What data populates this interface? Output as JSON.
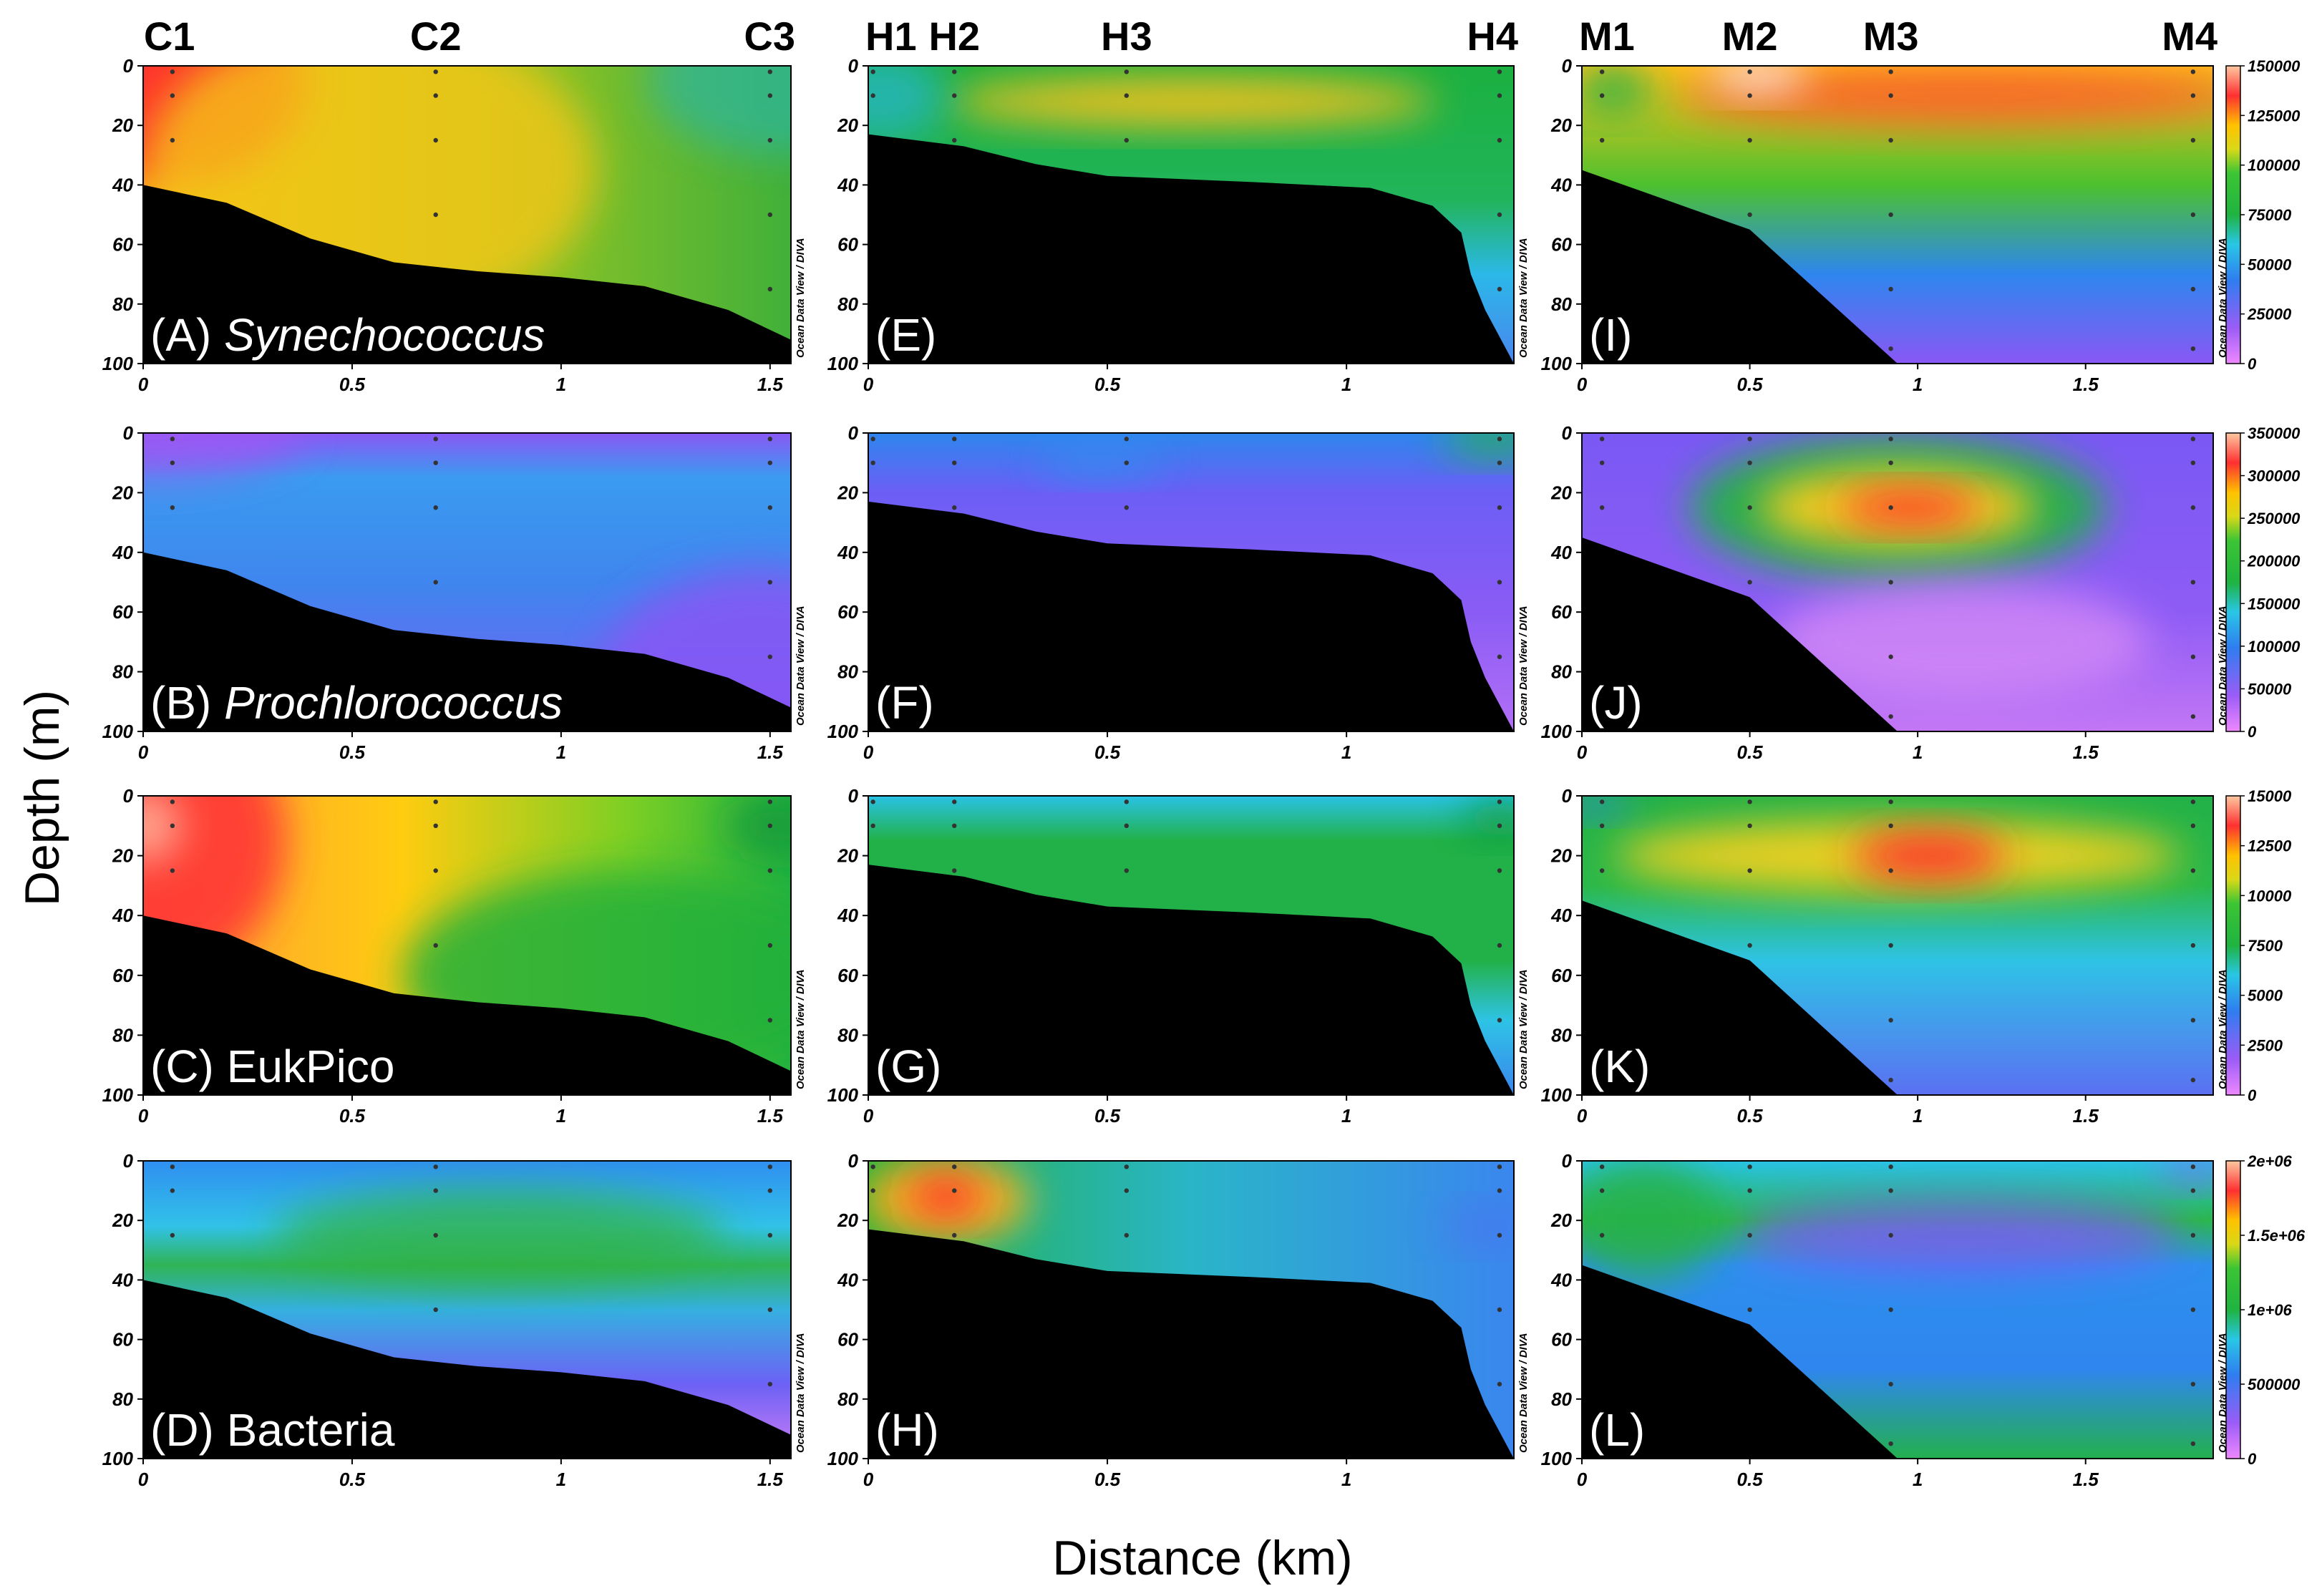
{
  "figure": {
    "ylabel": "Depth (m)",
    "xlabel": "Distance (km)",
    "watermark": "Ocean Data View / DIVA",
    "columns": [
      {
        "stations": [
          {
            "name": "C1",
            "km": 0.07
          },
          {
            "name": "C2",
            "km": 0.7
          },
          {
            "name": "C3",
            "km": 1.5
          }
        ]
      },
      {
        "stations": [
          {
            "name": "H1",
            "km": 0.01
          },
          {
            "name": "H2",
            "km": 0.18
          },
          {
            "name": "H3",
            "km": 0.54
          },
          {
            "name": "H4",
            "km": 1.32
          }
        ]
      },
      {
        "stations": [
          {
            "name": "M1",
            "km": 0.06
          },
          {
            "name": "M2",
            "km": 0.5
          },
          {
            "name": "M3",
            "km": 0.92
          },
          {
            "name": "M4",
            "km": 1.82
          }
        ]
      }
    ],
    "colorbars": [
      {
        "row": 0,
        "ticks": [
          "0",
          "25000",
          "50000",
          "75000",
          "100000",
          "125000",
          "150000"
        ]
      },
      {
        "row": 1,
        "ticks": [
          "0",
          "50000",
          "100000",
          "150000",
          "200000",
          "250000",
          "300000",
          "350000"
        ]
      },
      {
        "row": 2,
        "ticks": [
          "0",
          "2500",
          "5000",
          "7500",
          "10000",
          "12500",
          "15000"
        ]
      },
      {
        "row": 3,
        "ticks": [
          "0",
          "500000",
          "1e+06",
          "1.5e+06",
          "2e+06"
        ]
      }
    ]
  },
  "chart_data": [
    {
      "type": "heatmap",
      "id": "A",
      "panel_label": "(A) ",
      "taxon": "Synechococcus",
      "taxon_italic": true,
      "column": 0,
      "row": 0,
      "xlim": [
        0,
        1.55
      ],
      "ylim": [
        0,
        100
      ],
      "xticks": [
        "0",
        "0.5",
        "1",
        "1.5"
      ],
      "yticks": [
        "0",
        "20",
        "40",
        "60",
        "80",
        "100"
      ]
    },
    {
      "type": "heatmap",
      "id": "B",
      "panel_label": "(B) ",
      "taxon": "Prochlorococcus",
      "taxon_italic": true,
      "column": 0,
      "row": 1,
      "xlim": [
        0,
        1.55
      ],
      "ylim": [
        0,
        100
      ],
      "xticks": [
        "0",
        "0.5",
        "1",
        "1.5"
      ],
      "yticks": [
        "0",
        "20",
        "40",
        "60",
        "80",
        "100"
      ]
    },
    {
      "type": "heatmap",
      "id": "C",
      "panel_label": "(C) ",
      "taxon": "EukPico",
      "taxon_italic": false,
      "column": 0,
      "row": 2,
      "xlim": [
        0,
        1.55
      ],
      "ylim": [
        0,
        100
      ],
      "xticks": [
        "0",
        "0.5",
        "1",
        "1.5"
      ],
      "yticks": [
        "0",
        "20",
        "40",
        "60",
        "80",
        "100"
      ]
    },
    {
      "type": "heatmap",
      "id": "D",
      "panel_label": "(D) ",
      "taxon": "Bacteria",
      "taxon_italic": false,
      "column": 0,
      "row": 3,
      "xlim": [
        0,
        1.55
      ],
      "ylim": [
        0,
        100
      ],
      "xticks": [
        "0",
        "0.5",
        "1",
        "1.5"
      ],
      "yticks": [
        "0",
        "20",
        "40",
        "60",
        "80",
        "100"
      ]
    },
    {
      "type": "heatmap",
      "id": "E",
      "panel_label": "(E)",
      "taxon": "",
      "taxon_italic": false,
      "column": 1,
      "row": 0,
      "xlim": [
        0,
        1.35
      ],
      "ylim": [
        0,
        100
      ],
      "xticks": [
        "0",
        "0.5",
        "1"
      ],
      "yticks": [
        "0",
        "20",
        "40",
        "60",
        "80",
        "100"
      ]
    },
    {
      "type": "heatmap",
      "id": "F",
      "panel_label": "(F)",
      "taxon": "",
      "taxon_italic": false,
      "column": 1,
      "row": 1,
      "xlim": [
        0,
        1.35
      ],
      "ylim": [
        0,
        100
      ],
      "xticks": [
        "0",
        "0.5",
        "1"
      ],
      "yticks": [
        "0",
        "20",
        "40",
        "60",
        "80",
        "100"
      ]
    },
    {
      "type": "heatmap",
      "id": "G",
      "panel_label": "(G)",
      "taxon": "",
      "taxon_italic": false,
      "column": 1,
      "row": 2,
      "xlim": [
        0,
        1.35
      ],
      "ylim": [
        0,
        100
      ],
      "xticks": [
        "0",
        "0.5",
        "1"
      ],
      "yticks": [
        "0",
        "20",
        "40",
        "60",
        "80",
        "100"
      ]
    },
    {
      "type": "heatmap",
      "id": "H",
      "panel_label": "(H)",
      "taxon": "",
      "taxon_italic": false,
      "column": 1,
      "row": 3,
      "xlim": [
        0,
        1.35
      ],
      "ylim": [
        0,
        100
      ],
      "xticks": [
        "0",
        "0.5",
        "1"
      ],
      "yticks": [
        "0",
        "20",
        "40",
        "60",
        "80",
        "100"
      ]
    },
    {
      "type": "heatmap",
      "id": "I",
      "panel_label": "(I)",
      "taxon": "",
      "taxon_italic": false,
      "column": 2,
      "row": 0,
      "xlim": [
        0,
        1.88
      ],
      "ylim": [
        0,
        100
      ],
      "xticks": [
        "0",
        "0.5",
        "1",
        "1.5"
      ],
      "yticks": [
        "0",
        "20",
        "40",
        "60",
        "80",
        "100"
      ]
    },
    {
      "type": "heatmap",
      "id": "J",
      "panel_label": "(J)",
      "taxon": "",
      "taxon_italic": false,
      "column": 2,
      "row": 1,
      "xlim": [
        0,
        1.88
      ],
      "ylim": [
        0,
        100
      ],
      "xticks": [
        "0",
        "0.5",
        "1",
        "1.5"
      ],
      "yticks": [
        "0",
        "20",
        "40",
        "60",
        "80",
        "100"
      ]
    },
    {
      "type": "heatmap",
      "id": "K",
      "panel_label": "(K)",
      "taxon": "",
      "taxon_italic": false,
      "column": 2,
      "row": 2,
      "xlim": [
        0,
        1.88
      ],
      "ylim": [
        0,
        100
      ],
      "xticks": [
        "0",
        "0.5",
        "1",
        "1.5"
      ],
      "yticks": [
        "0",
        "20",
        "40",
        "60",
        "80",
        "100"
      ]
    },
    {
      "type": "heatmap",
      "id": "L",
      "panel_label": "(L)",
      "taxon": "",
      "taxon_italic": false,
      "column": 2,
      "row": 3,
      "xlim": [
        0,
        1.88
      ],
      "ylim": [
        0,
        100
      ],
      "xticks": [
        "0",
        "0.5",
        "1",
        "1.5"
      ],
      "yticks": [
        "0",
        "20",
        "40",
        "60",
        "80",
        "100"
      ]
    }
  ]
}
